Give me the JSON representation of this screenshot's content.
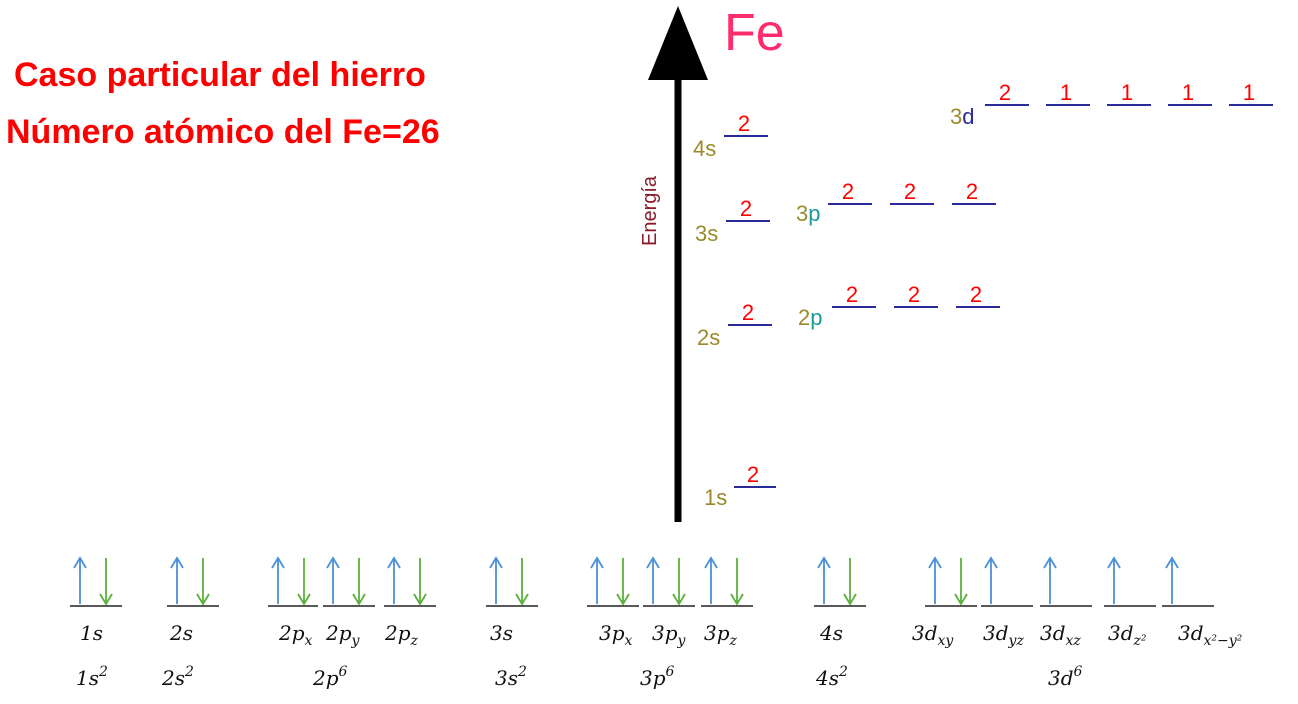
{
  "title": {
    "line1": "Caso particular del hierro",
    "line2": "Número atómico del Fe=26"
  },
  "element_symbol": "Fe",
  "axis_label": "Energía",
  "colors": {
    "title": "#ff0000",
    "symbol": "#ff2d6e",
    "level_line": "#2a2a9a",
    "occupancy": "#ff0000",
    "shell_number": "#9a8a2a",
    "p_letter": "#1a9a9a",
    "d_letter": "#2a2a9a",
    "spin_up": "#4a90d9",
    "spin_down": "#5ab03a",
    "axis": "#000000",
    "axis_label": "#8b1a2a"
  },
  "energy_levels": [
    {
      "id": "1s",
      "shell": "1",
      "letter": "s",
      "occupancies": [
        "2"
      ]
    },
    {
      "id": "2s",
      "shell": "2",
      "letter": "s",
      "occupancies": [
        "2"
      ]
    },
    {
      "id": "2p",
      "shell": "2",
      "letter": "p",
      "occupancies": [
        "2",
        "2",
        "2"
      ]
    },
    {
      "id": "3s",
      "shell": "3",
      "letter": "s",
      "occupancies": [
        "2"
      ]
    },
    {
      "id": "3p",
      "shell": "3",
      "letter": "p",
      "occupancies": [
        "2",
        "2",
        "2"
      ]
    },
    {
      "id": "4s",
      "shell": "4",
      "letter": "s",
      "occupancies": [
        "2"
      ]
    },
    {
      "id": "3d",
      "shell": "3",
      "letter": "d",
      "occupancies": [
        "2",
        "1",
        "1",
        "1",
        "1"
      ]
    }
  ],
  "orbitals": [
    {
      "id": "1s",
      "base": "1s",
      "sub": "",
      "spins": [
        "up",
        "down"
      ]
    },
    {
      "id": "2s",
      "base": "2s",
      "sub": "",
      "spins": [
        "up",
        "down"
      ]
    },
    {
      "id": "2px",
      "base": "2p",
      "sub": "x",
      "spins": [
        "up",
        "down"
      ]
    },
    {
      "id": "2py",
      "base": "2p",
      "sub": "y",
      "spins": [
        "up",
        "down"
      ]
    },
    {
      "id": "2pz",
      "base": "2p",
      "sub": "z",
      "spins": [
        "up",
        "down"
      ]
    },
    {
      "id": "3s",
      "base": "3s",
      "sub": "",
      "spins": [
        "up",
        "down"
      ]
    },
    {
      "id": "3px",
      "base": "3p",
      "sub": "x",
      "spins": [
        "up",
        "down"
      ]
    },
    {
      "id": "3py",
      "base": "3p",
      "sub": "y",
      "spins": [
        "up",
        "down"
      ]
    },
    {
      "id": "3pz",
      "base": "3p",
      "sub": "z",
      "spins": [
        "up",
        "down"
      ]
    },
    {
      "id": "4s",
      "base": "4s",
      "sub": "",
      "spins": [
        "up",
        "down"
      ]
    },
    {
      "id": "3dxy",
      "base": "3d",
      "sub": "xy",
      "spins": [
        "up",
        "down"
      ]
    },
    {
      "id": "3dyz",
      "base": "3d",
      "sub": "yz",
      "spins": [
        "up"
      ]
    },
    {
      "id": "3dxz",
      "base": "3d",
      "sub": "xz",
      "spins": [
        "up"
      ]
    },
    {
      "id": "3dz2",
      "base": "3d",
      "sub": "z²",
      "spins": [
        "up"
      ]
    },
    {
      "id": "3dx2y2",
      "base": "3d",
      "sub": "x²−y²",
      "spins": [
        "up"
      ]
    }
  ],
  "configurations": [
    {
      "id": "1s2",
      "base": "1s",
      "sup": "2"
    },
    {
      "id": "2s2",
      "base": "2s",
      "sup": "2"
    },
    {
      "id": "2p6",
      "base": "2p",
      "sup": "6"
    },
    {
      "id": "3s2",
      "base": "3s",
      "sup": "2"
    },
    {
      "id": "3p6",
      "base": "3p",
      "sup": "6"
    },
    {
      "id": "4s2",
      "base": "4s",
      "sup": "2"
    },
    {
      "id": "3d6",
      "base": "3d",
      "sup": "6"
    }
  ]
}
